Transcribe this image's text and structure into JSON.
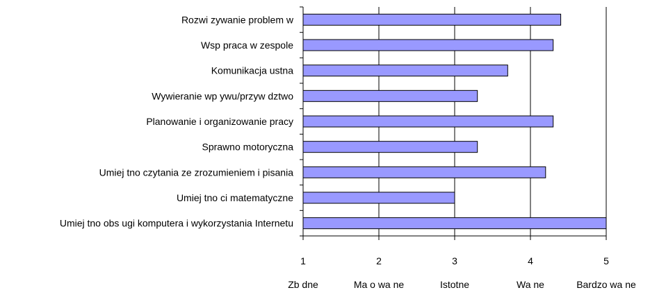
{
  "chart_data": {
    "type": "bar",
    "orientation": "horizontal",
    "categories": [
      "Rozwi  zywanie problem  w",
      "Wsp   praca w zespole",
      "Komunikacja ustna",
      "Wywieranie wp ywu/przyw  dztwo",
      "Planowanie i organizowanie pracy",
      "Sprawno     motoryczna",
      "Umiej  tno     czytania ze zrozumieniem i pisania",
      "Umiej  tno  ci matematyczne",
      "Umiej  tno     obs ugi komputera i wykorzystania Internetu"
    ],
    "values": [
      4.4,
      4.3,
      3.7,
      3.3,
      4.3,
      3.3,
      4.2,
      3.0,
      5.0
    ],
    "xlim": [
      1,
      5
    ],
    "xticks": [
      1,
      2,
      3,
      4,
      5
    ],
    "scale_labels": [
      "Zb  dne",
      "Ma o wa  ne",
      "Istotne",
      "Wa  ne",
      "Bardzo wa  ne"
    ],
    "title": "",
    "xlabel": "",
    "ylabel": "",
    "grid": true,
    "colors": {
      "bar_fill": "#9999ff",
      "bar_stroke": "#000000",
      "grid": "#000000",
      "axis": "#000000"
    }
  }
}
